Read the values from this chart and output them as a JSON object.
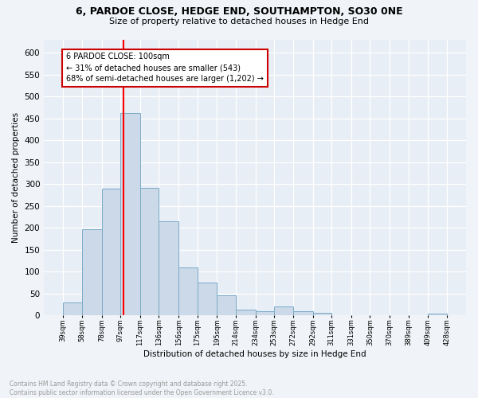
{
  "title_line1": "6, PARDOE CLOSE, HEDGE END, SOUTHAMPTON, SO30 0NE",
  "title_line2": "Size of property relative to detached houses in Hedge End",
  "xlabel": "Distribution of detached houses by size in Hedge End",
  "ylabel": "Number of detached properties",
  "bar_color": "#ccd9e8",
  "bar_edge_color": "#7aaac8",
  "background_color": "#e8eef5",
  "grid_color": "#ffffff",
  "fig_background": "#f0f4f8",
  "red_line_x": 100,
  "annotation_text": "6 PARDOE CLOSE: 100sqm\n← 31% of detached houses are smaller (543)\n68% of semi-detached houses are larger (1,202) →",
  "bins": [
    39,
    58,
    78,
    97,
    117,
    136,
    156,
    175,
    195,
    214,
    234,
    253,
    272,
    292,
    311,
    331,
    350,
    370,
    389,
    409,
    428
  ],
  "values": [
    30,
    197,
    290,
    463,
    291,
    215,
    110,
    75,
    47,
    13,
    10,
    20,
    9,
    6,
    0,
    0,
    0,
    0,
    0,
    5
  ],
  "ylim": [
    0,
    630
  ],
  "yticks": [
    0,
    50,
    100,
    150,
    200,
    250,
    300,
    350,
    400,
    450,
    500,
    550,
    600
  ],
  "footnote": "Contains HM Land Registry data © Crown copyright and database right 2025.\nContains public sector information licensed under the Open Government Licence v3.0.",
  "footnote_color": "#999999"
}
